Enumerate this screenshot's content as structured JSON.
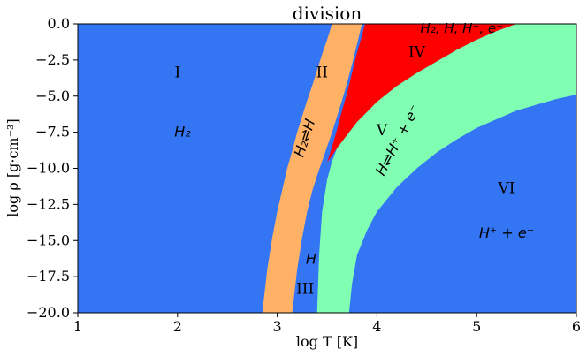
{
  "chart_data": {
    "type": "area",
    "title": "division",
    "xlabel": "log T [K]",
    "ylabel": "log ρ [g·cm⁻³]",
    "xlim": [
      1,
      6
    ],
    "ylim": [
      -20.0,
      0.0
    ],
    "xticks": [
      "1",
      "2",
      "3",
      "4",
      "5",
      "6"
    ],
    "yticks": [
      "0.0",
      "−2.5",
      "−5.0",
      "−7.5",
      "−10.0",
      "−12.5",
      "−15.0",
      "−17.5",
      "−20.0"
    ],
    "grid": false,
    "colors": {
      "blue_region": "#3375F3",
      "orange_band": "#FFB266",
      "red_region": "#FF0000",
      "green_band": "#80FFB2"
    },
    "regions": [
      {
        "id": "I",
        "label": "I",
        "species": "H₂",
        "color": "#3375F3"
      },
      {
        "id": "II",
        "label": "II",
        "species": "H₂⇌H",
        "color": "#FFB266",
        "left_boundary": [
          [
            2.85,
            -20.0
          ],
          [
            2.9,
            -17.0
          ],
          [
            2.95,
            -14.8
          ],
          [
            3.0,
            -13.0
          ],
          [
            3.05,
            -11.5
          ],
          [
            3.1,
            -10.0
          ],
          [
            3.15,
            -8.8
          ],
          [
            3.2,
            -7.5
          ],
          [
            3.25,
            -6.4
          ],
          [
            3.3,
            -5.3
          ],
          [
            3.35,
            -4.3
          ],
          [
            3.4,
            -3.2
          ],
          [
            3.45,
            -2.1
          ],
          [
            3.5,
            -1.1
          ],
          [
            3.55,
            0.0
          ]
        ],
        "right_boundary": [
          [
            3.15,
            -20.0
          ],
          [
            3.2,
            -17.0
          ],
          [
            3.25,
            -14.8
          ],
          [
            3.3,
            -13.0
          ],
          [
            3.35,
            -11.6
          ],
          [
            3.4,
            -10.5
          ],
          [
            3.45,
            -9.5
          ],
          [
            3.5,
            -8.5
          ],
          [
            3.55,
            -7.5
          ],
          [
            3.6,
            -6.4
          ],
          [
            3.65,
            -5.3
          ],
          [
            3.7,
            -4.1
          ],
          [
            3.75,
            -2.8
          ],
          [
            3.8,
            -1.4
          ],
          [
            3.85,
            0.0
          ]
        ]
      },
      {
        "id": "III",
        "label": "III",
        "species": "H",
        "color": "#3375F3"
      },
      {
        "id": "IV",
        "label": "IV",
        "species": "H₂, H, H⁺, e⁻",
        "color": "#FF0000"
      },
      {
        "id": "V",
        "label": "V",
        "species": "H⇌H⁺ + e⁻",
        "color": "#80FFB2",
        "left_boundary": [
          [
            3.4,
            -20.0
          ],
          [
            3.42,
            -16.0
          ],
          [
            3.45,
            -13.0
          ],
          [
            3.5,
            -10.8
          ],
          [
            3.55,
            -9.5
          ],
          [
            3.6,
            -8.6
          ],
          [
            3.8,
            -6.8
          ],
          [
            4.0,
            -5.4
          ],
          [
            4.2,
            -4.3
          ],
          [
            4.4,
            -3.4
          ],
          [
            4.6,
            -2.6
          ],
          [
            4.8,
            -1.8
          ],
          [
            5.0,
            -1.1
          ],
          [
            5.2,
            -0.5
          ],
          [
            5.4,
            0.0
          ]
        ],
        "right_boundary": [
          [
            3.72,
            -20.0
          ],
          [
            3.75,
            -18.0
          ],
          [
            3.8,
            -16.0
          ],
          [
            3.9,
            -14.3
          ],
          [
            4.0,
            -13.0
          ],
          [
            4.2,
            -11.3
          ],
          [
            4.4,
            -10.0
          ],
          [
            4.6,
            -8.9
          ],
          [
            4.8,
            -8.0
          ],
          [
            5.0,
            -7.2
          ],
          [
            5.2,
            -6.6
          ],
          [
            5.4,
            -6.0
          ],
          [
            5.6,
            -5.6
          ],
          [
            5.8,
            -5.2
          ],
          [
            6.0,
            -4.9
          ]
        ]
      },
      {
        "id": "VI",
        "label": "VI",
        "species": "H⁺ + e⁻",
        "color": "#3375F3"
      }
    ]
  }
}
